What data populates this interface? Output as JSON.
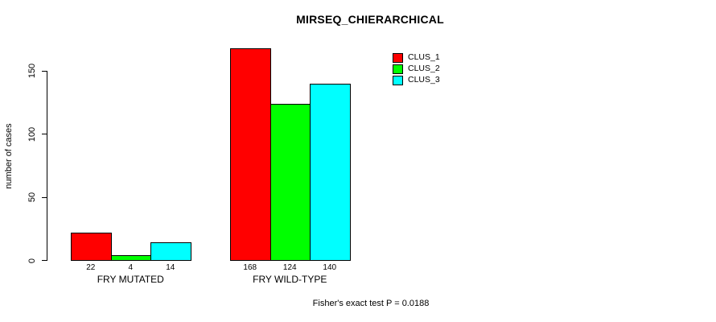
{
  "chart_data": {
    "type": "bar",
    "title": "MIRSEQ_CHIERARCHICAL",
    "ylabel": "number of cases",
    "xlabel": "",
    "footnote": "Fisher's exact test P = 0.0188",
    "categories": [
      "FRY MUTATED",
      "FRY WILD-TYPE"
    ],
    "series": [
      {
        "name": "CLUS_1",
        "color": "#ff0000",
        "values": [
          22,
          168
        ]
      },
      {
        "name": "CLUS_2",
        "color": "#00ff00",
        "values": [
          4,
          124
        ]
      },
      {
        "name": "CLUS_3",
        "color": "#00ffff",
        "values": [
          14,
          140
        ]
      }
    ],
    "bar_value_labels": [
      [
        "22",
        "4",
        "14"
      ],
      [
        "168",
        "124",
        "140"
      ]
    ],
    "yticks": [
      0,
      50,
      100,
      150
    ],
    "ylim": [
      0,
      170
    ],
    "grid": false,
    "legend": {
      "position": "top-right",
      "entries": [
        "CLUS_1",
        "CLUS_2",
        "CLUS_3"
      ]
    },
    "colors": {
      "axis": "#000000",
      "background": "#ffffff",
      "text": "#000000"
    }
  }
}
